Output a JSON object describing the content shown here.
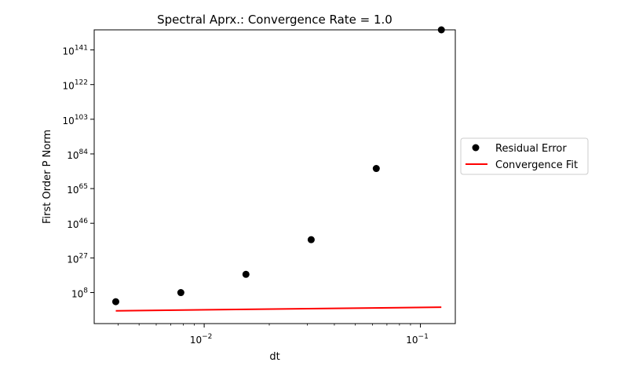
{
  "chart_data": {
    "type": "scatter",
    "title": "Spectral Aprx.: Convergence Rate = 1.0",
    "xlabel": "dt",
    "ylabel": "First Order P Norm",
    "xscale": "log",
    "yscale": "log",
    "xlim": [
      0.0031,
      0.145
    ],
    "ylim_exponents": [
      -9,
      152
    ],
    "x_ticks": [
      {
        "value": 0.01,
        "base": "10",
        "exp": "−2"
      },
      {
        "value": 0.1,
        "base": "10",
        "exp": "−1"
      }
    ],
    "y_ticks": [
      {
        "exp_value": 8,
        "base": "10",
        "exp": "8"
      },
      {
        "exp_value": 27,
        "base": "10",
        "exp": "27"
      },
      {
        "exp_value": 46,
        "base": "10",
        "exp": "46"
      },
      {
        "exp_value": 65,
        "base": "10",
        "exp": "65"
      },
      {
        "exp_value": 84,
        "base": "10",
        "exp": "84"
      },
      {
        "exp_value": 103,
        "base": "10",
        "exp": "103"
      },
      {
        "exp_value": 122,
        "base": "10",
        "exp": "122"
      },
      {
        "exp_value": 141,
        "base": "10",
        "exp": "141"
      }
    ],
    "grid": false,
    "legend_position": "right",
    "series": [
      {
        "name": "Residual Error",
        "kind": "points",
        "color": "#000000",
        "x": [
          0.0039,
          0.0078,
          0.0156,
          0.03125,
          0.0625,
          0.125
        ],
        "y_exponents": [
          3,
          8,
          18,
          37,
          76,
          152
        ]
      },
      {
        "name": "Convergence Fit",
        "kind": "line",
        "color": "#ff0000",
        "x": [
          0.0039,
          0.125
        ],
        "y_exponents": [
          -2,
          0
        ]
      }
    ]
  }
}
